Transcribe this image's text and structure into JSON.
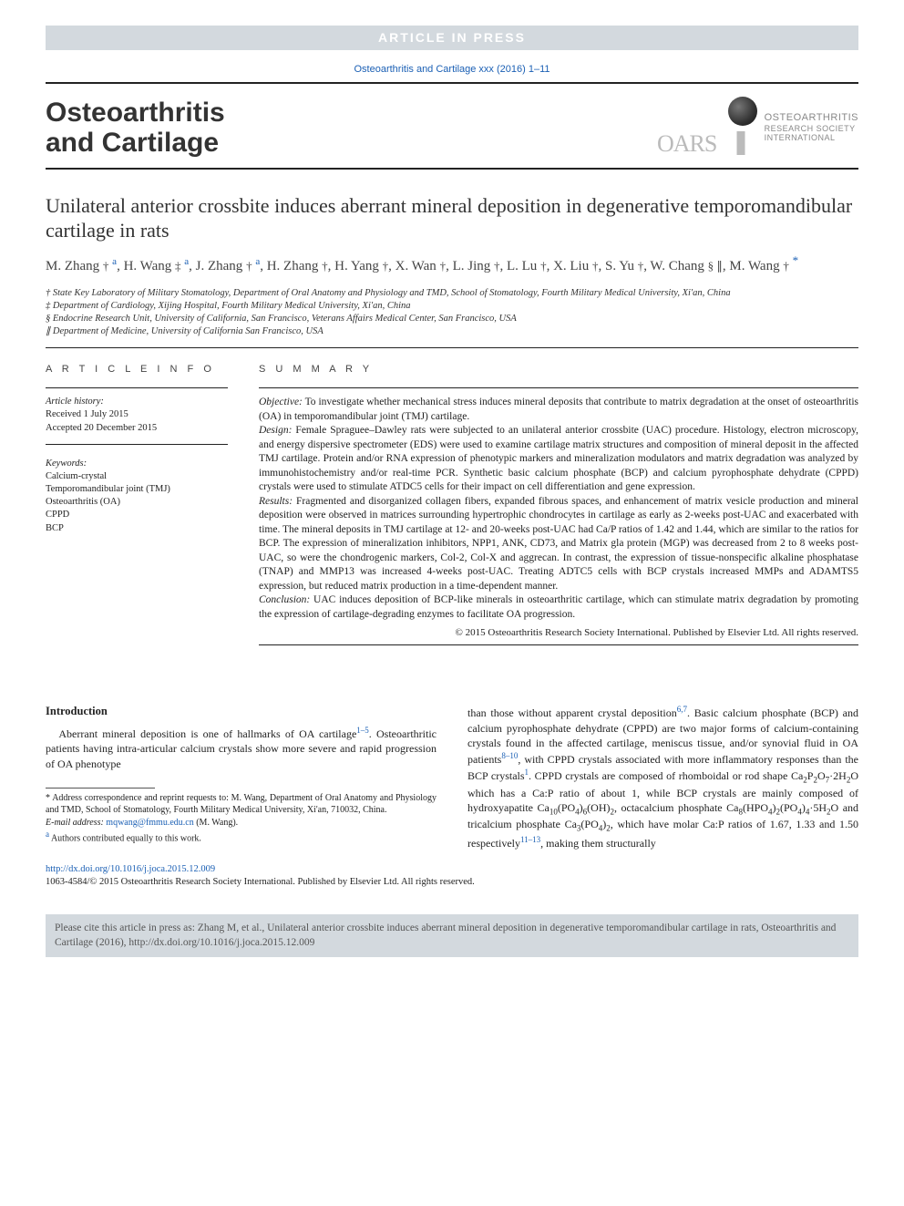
{
  "banner": "ARTICLE IN PRESS",
  "top_citation": "Osteoarthritis and Cartilage xxx (2016) 1–11",
  "journal": {
    "line1": "Osteoarthritis",
    "line2": "and Cartilage"
  },
  "oarsi": {
    "l1": "OSTEOARTHRITIS",
    "l2": "RESEARCH SOCIETY",
    "l3": "INTERNATIONAL"
  },
  "title": "Unilateral anterior crossbite induces aberrant mineral deposition in degenerative temporomandibular cartilage in rats",
  "authors_html_parts": {
    "list": [
      {
        "name": "M. Zhang",
        "sym": "†",
        "aff": "a"
      },
      {
        "name": "H. Wang",
        "sym": "‡",
        "aff": "a"
      },
      {
        "name": "J. Zhang",
        "sym": "†",
        "aff": "a"
      },
      {
        "name": "H. Zhang",
        "sym": "†",
        "aff": ""
      },
      {
        "name": "H. Yang",
        "sym": "†",
        "aff": ""
      },
      {
        "name": "X. Wan",
        "sym": "†",
        "aff": ""
      },
      {
        "name": "L. Jing",
        "sym": "†",
        "aff": ""
      },
      {
        "name": "L. Lu",
        "sym": "†",
        "aff": ""
      },
      {
        "name": "X. Liu",
        "sym": "†",
        "aff": ""
      },
      {
        "name": "S. Yu",
        "sym": "†",
        "aff": ""
      },
      {
        "name": "W. Chang",
        "sym": "§ ∥",
        "aff": ""
      },
      {
        "name": "M. Wang",
        "sym": "†",
        "aff": "",
        "star": "*"
      }
    ]
  },
  "affiliations": [
    "† State Key Laboratory of Military Stomatology, Department of Oral Anatomy and Physiology and TMD, School of Stomatology, Fourth Military Medical University, Xi'an, China",
    "‡ Department of Cardiology, Xijing Hospital, Fourth Military Medical University, Xi'an, China",
    "§ Endocrine Research Unit, University of California, San Francisco, Veterans Affairs Medical Center, San Francisco, USA",
    "∥ Department of Medicine, University of California San Francisco, USA"
  ],
  "article_info": {
    "head": "A R T I C L E   I N F O",
    "history_head": "Article history:",
    "received": "Received 1 July 2015",
    "accepted": "Accepted 20 December 2015",
    "keywords_head": "Keywords:",
    "keywords": [
      "Calcium-crystal",
      "Temporomandibular joint (TMJ)",
      "Osteoarthritis (OA)",
      "CPPD",
      "BCP"
    ]
  },
  "summary": {
    "head": "S U M M A R Y",
    "objective_label": "Objective:",
    "objective": " To investigate whether mechanical stress induces mineral deposits that contribute to matrix degradation at the onset of osteoarthritis (OA) in temporomandibular joint (TMJ) cartilage.",
    "design_label": "Design:",
    "design": " Female Spraguee–Dawley rats were subjected to an unilateral anterior crossbite (UAC) procedure. Histology, electron microscopy, and energy dispersive spectrometer (EDS) were used to examine cartilage matrix structures and composition of mineral deposit in the affected TMJ cartilage. Protein and/or RNA expression of phenotypic markers and mineralization modulators and matrix degradation was analyzed by immunohistochemistry and/or real-time PCR. Synthetic basic calcium phosphate (BCP) and calcium pyrophosphate dehydrate (CPPD) crystals were used to stimulate ATDC5 cells for their impact on cell differentiation and gene expression.",
    "results_label": "Results:",
    "results": " Fragmented and disorganized collagen fibers, expanded fibrous spaces, and enhancement of matrix vesicle production and mineral deposition were observed in matrices surrounding hypertrophic chondrocytes in cartilage as early as 2-weeks post-UAC and exacerbated with time. The mineral deposits in TMJ cartilage at 12- and 20-weeks post-UAC had Ca/P ratios of 1.42 and 1.44, which are similar to the ratios for BCP. The expression of mineralization inhibitors, NPP1, ANK, CD73, and Matrix gla protein (MGP) was decreased from 2 to 8 weeks post-UAC, so were the chondrogenic markers, Col-2, Col-X and aggrecan. In contrast, the expression of tissue-nonspecific alkaline phosphatase (TNAP) and MMP13 was increased 4-weeks post-UAC. Treating ADTC5 cells with BCP crystals increased MMPs and ADAMTS5 expression, but reduced matrix production in a time-dependent manner.",
    "conclusion_label": "Conclusion:",
    "conclusion": " UAC induces deposition of BCP-like minerals in osteoarthritic cartilage, which can stimulate matrix degradation by promoting the expression of cartilage-degrading enzymes to facilitate OA progression.",
    "copyright": "© 2015 Osteoarthritis Research Society International. Published by Elsevier Ltd. All rights reserved."
  },
  "introduction": {
    "head": "Introduction",
    "p1_a": "Aberrant mineral deposition is one of hallmarks of OA cartilage",
    "p1_ref1": "1–5",
    "p1_b": ". Osteoarthritic patients having intra-articular calcium crystals show more severe and rapid progression of OA phenotype",
    "p2_a": "than those without apparent crystal deposition",
    "p2_ref1": "6,7",
    "p2_b": ". Basic calcium phosphate (BCP) and calcium pyrophosphate dehydrate (CPPD) are two major forms of calcium-containing crystals found in the affected cartilage, meniscus tissue, and/or synovial fluid in OA patients",
    "p2_ref2": "8–10",
    "p2_c": ", with CPPD crystals associated with more inflammatory responses than the BCP crystals",
    "p2_ref3": "1",
    "p2_d": ". CPPD crystals are composed of rhomboidal or rod shape Ca",
    "p2_e": "P",
    "p2_f": "O",
    "p2_g": "·2H",
    "p2_h": "O which has a Ca:P ratio of about 1, while BCP crystals are mainly composed of hydroxyapatite Ca",
    "p2_i": "(PO",
    "p2_j": ")",
    "p2_k": "(OH)",
    "p2_l": ", octacalcium phosphate Ca",
    "p2_m": "(HPO",
    "p2_n": ")",
    "p2_o": "(PO",
    "p2_p": ")",
    "p2_q": "·5H",
    "p2_r": "O and tricalcium phosphate Ca",
    "p2_s": "(PO",
    "p2_t": ")",
    "p2_u": ", which have molar Ca:P ratios of 1.67, 1.33 and 1.50 respectively",
    "p2_ref4": "11–13",
    "p2_v": ", making them structurally"
  },
  "footnotes": {
    "corr": "* Address correspondence and reprint requests to: M. Wang, Department of Oral Anatomy and Physiology and TMD, School of Stomatology, Fourth Military Medical University, Xi'an, 710032, China.",
    "email_label": "E-mail address:",
    "email": "mqwang@fmmu.edu.cn",
    "email_tail": "(M. Wang).",
    "contrib": "Authors contributed equally to this work.",
    "contrib_sup": "a"
  },
  "doi": {
    "url": "http://dx.doi.org/10.1016/j.joca.2015.12.009",
    "line2": "1063-4584/© 2015 Osteoarthritis Research Society International. Published by Elsevier Ltd. All rights reserved."
  },
  "citebox": "Please cite this article in press as: Zhang M, et al., Unilateral anterior crossbite induces aberrant mineral deposition in degenerative temporomandibular cartilage in rats, Osteoarthritis and Cartilage (2016), http://dx.doi.org/10.1016/j.joca.2015.12.009"
}
